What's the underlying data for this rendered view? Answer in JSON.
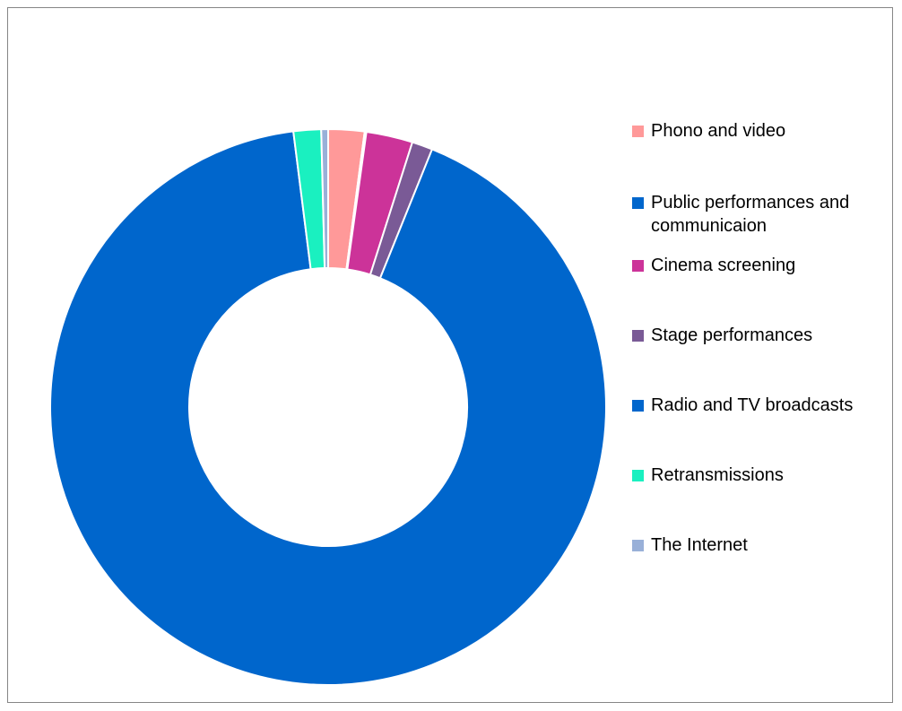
{
  "chart_data": {
    "type": "pie",
    "variant": "donut",
    "legend_position": "right",
    "categories": [
      "Phono and video",
      "Public performances and communicaion",
      "Cinema screening",
      "Stage performances",
      "Radio and TV broadcasts",
      "Retransmissions",
      "The Internet"
    ],
    "values": [
      2.1,
      0.1,
      2.7,
      1.2,
      91.9,
      1.6,
      0.4
    ],
    "colors": [
      "#FF9999",
      "#0066CC",
      "#CC3399",
      "#7A5A96",
      "#0066CC",
      "#1AF0C0",
      "#99B0D8"
    ],
    "title": ""
  }
}
